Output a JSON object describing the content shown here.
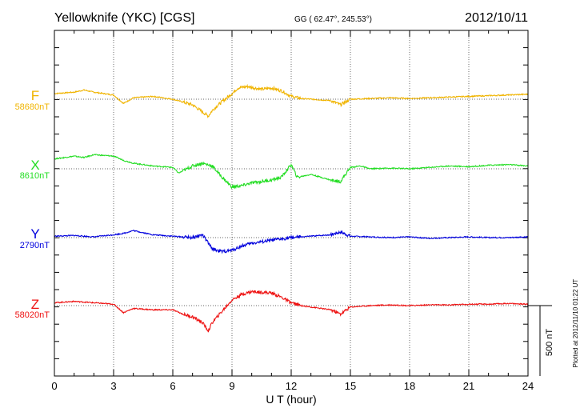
{
  "header": {
    "station": "Yellowknife (YKC)  [CGS]",
    "coords": "GG ( 62.47°, 245.53°)",
    "date": "2012/10/11"
  },
  "side_note": "Plotted at 2012/11/10 01:22 UT",
  "chart_data": {
    "type": "line",
    "title": "Yellowknife (YKC)  [CGS]",
    "xlabel": "U T (hour)",
    "ylabel": "",
    "xlim": [
      0,
      24
    ],
    "x_ticks": [
      "0",
      "3",
      "6",
      "9",
      "12",
      "15",
      "18",
      "21",
      "24"
    ],
    "scale_bar_label": "500 nT",
    "scale_bar_nT": 500,
    "grid": true,
    "series": [
      {
        "name": "F",
        "baseline_label": "58680nT",
        "color": "#f0b400",
        "x": [
          0,
          1,
          1.5,
          2,
          3,
          3.5,
          4,
          5,
          6,
          6.5,
          7,
          7.5,
          7.8,
          8,
          8.3,
          9,
          9.3,
          9.8,
          10.5,
          11,
          11.5,
          12,
          12.5,
          13,
          14,
          14.5,
          15,
          16,
          17,
          18,
          19,
          20,
          21,
          22,
          23,
          24
        ],
        "y": [
          40,
          50,
          65,
          50,
          30,
          -30,
          10,
          20,
          0,
          -20,
          -40,
          -90,
          -120,
          -80,
          -40,
          40,
          80,
          90,
          70,
          80,
          60,
          20,
          5,
          0,
          -10,
          -40,
          0,
          5,
          10,
          5,
          10,
          15,
          20,
          25,
          30,
          35
        ]
      },
      {
        "name": "X",
        "baseline_label": "8610nT",
        "color": "#22dd22",
        "x": [
          0,
          1,
          1.5,
          2,
          3,
          3.5,
          4,
          5,
          6,
          6.3,
          7,
          7.5,
          8,
          8.5,
          9,
          9.5,
          10,
          11,
          11.5,
          12,
          12.3,
          13,
          14,
          14.5,
          15,
          15.5,
          16,
          17,
          18,
          19,
          20,
          21,
          22,
          23,
          24
        ],
        "y": [
          70,
          90,
          80,
          100,
          90,
          60,
          40,
          20,
          10,
          -30,
          20,
          40,
          20,
          -60,
          -130,
          -120,
          -100,
          -80,
          -60,
          30,
          -60,
          -40,
          -80,
          -90,
          10,
          20,
          0,
          5,
          0,
          10,
          20,
          15,
          25,
          30,
          20
        ]
      },
      {
        "name": "Y",
        "baseline_label": "2790nT",
        "color": "#0000dd",
        "x": [
          0,
          1,
          2,
          3,
          3.5,
          4,
          5,
          6,
          7,
          7.5,
          8,
          8.5,
          9,
          9.5,
          10,
          11,
          12,
          13,
          14,
          14.5,
          15,
          16,
          17,
          18,
          19,
          20,
          21,
          22,
          23,
          24
        ],
        "y": [
          10,
          15,
          5,
          20,
          30,
          50,
          20,
          10,
          0,
          20,
          -80,
          -100,
          -90,
          -60,
          -40,
          -20,
          0,
          10,
          20,
          40,
          10,
          5,
          0,
          5,
          -5,
          0,
          5,
          0,
          0,
          5
        ]
      },
      {
        "name": "Z",
        "baseline_label": "58020nT",
        "color": "#ee1111",
        "x": [
          0,
          1,
          2,
          3,
          3.5,
          4,
          5,
          6,
          6.5,
          7,
          7.5,
          7.8,
          8,
          8.5,
          9,
          9.5,
          10,
          11,
          11.5,
          12,
          12.5,
          13,
          14,
          14.5,
          15,
          16,
          17,
          18,
          19,
          20,
          21,
          22,
          23,
          24
        ],
        "y": [
          20,
          30,
          20,
          10,
          -50,
          -20,
          -30,
          -30,
          -60,
          -80,
          -120,
          -180,
          -120,
          -40,
          40,
          80,
          100,
          90,
          60,
          20,
          0,
          -10,
          -30,
          -60,
          -10,
          0,
          5,
          0,
          5,
          5,
          10,
          10,
          15,
          10
        ]
      }
    ]
  }
}
